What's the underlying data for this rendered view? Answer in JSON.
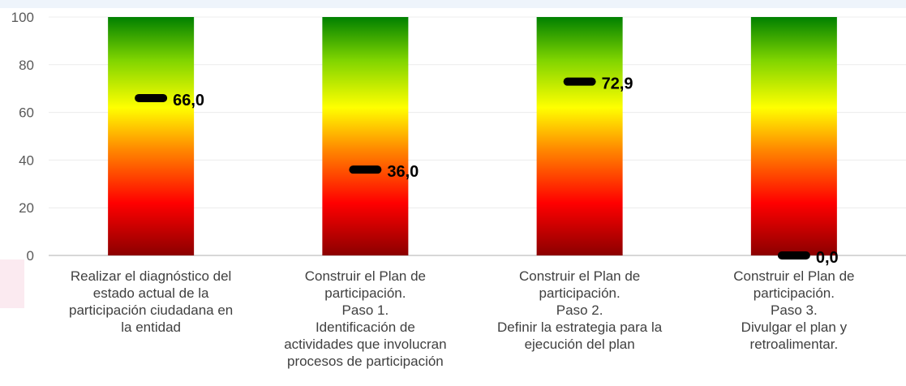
{
  "chart_data": {
    "type": "bar",
    "categories": [
      "Realizar el diagnóstico del\nestado actual de la\nparticipación ciudadana en\nla entidad",
      "Construir el Plan de\nparticipación.\nPaso 1.\nIdentificación de\nactividades que involucran\nprocesos de participación",
      "Construir el Plan de\nparticipación.\nPaso 2.\nDefinir la estrategia para la\nejecución del plan",
      "Construir el Plan de\nparticipación.\nPaso 3.\nDivulgar el plan y\nretroalimentar."
    ],
    "values": [
      66.0,
      36.0,
      72.9,
      0.0
    ],
    "value_labels": [
      "66,0",
      "36,0",
      "72,9",
      "0,0"
    ],
    "yticks": [
      "0",
      "20",
      "40",
      "60",
      "80",
      "100"
    ],
    "ylim": [
      0,
      100
    ],
    "grid": true,
    "bar_gradient": [
      "#8b0000",
      "#ff0000",
      "#ff8c00",
      "#ffff00",
      "#7fd400",
      "#008000"
    ],
    "marker_color": "#000000",
    "title": "",
    "xlabel": "",
    "ylabel": ""
  }
}
